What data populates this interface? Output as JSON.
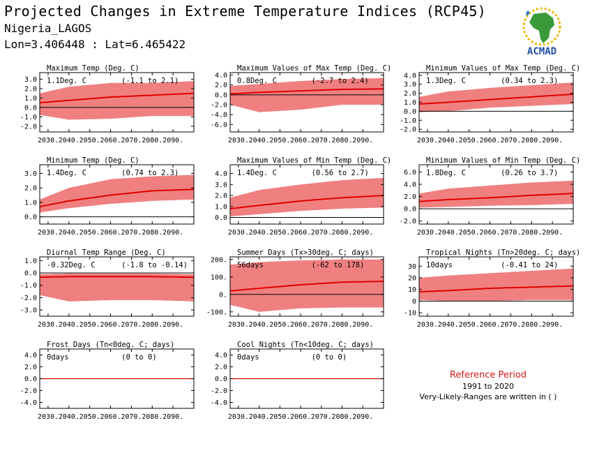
{
  "header": {
    "title": "Projected Changes in Extreme Temperature Indices (RCP45)",
    "location": "Nigeria_LAGOS",
    "coords": "Lon=3.406448 : Lat=6.465422"
  },
  "logo": {
    "text": "ACMAD",
    "icon": "africa-map-logo"
  },
  "reference": {
    "title": "Reference Period",
    "years": "1991 to 2020",
    "note": "Very-Likely-Ranges are written in ( )"
  },
  "colors": {
    "band": "#f08080",
    "line": "#e00000",
    "zero": "#000000"
  },
  "chart_data": [
    {
      "type": "area",
      "title": "Maximum Temp (Deg. C)",
      "mean_label": "1.1Deg. C",
      "range_label": "(-1.1 to 2.1)",
      "x": [
        "2030.",
        "2040.",
        "2050.",
        "2060.",
        "2070.",
        "2080.",
        "2090."
      ],
      "x_range": [
        2026,
        2100
      ],
      "yticks": [
        "3.0",
        "2.0",
        "1.0",
        "0.0",
        "-1.0",
        "-2.0"
      ],
      "ylim": [
        -2.6,
        3.7
      ],
      "series": [
        {
          "mean": [
            [
              2026,
              0.5
            ],
            [
              2040,
              0.75
            ],
            [
              2060,
              1.1
            ],
            [
              2080,
              1.3
            ],
            [
              2100,
              1.5
            ]
          ],
          "low": [
            [
              2026,
              -0.8
            ],
            [
              2040,
              -1.3
            ],
            [
              2060,
              -1.2
            ],
            [
              2080,
              -0.9
            ],
            [
              2100,
              -0.9
            ]
          ],
          "high": [
            [
              2026,
              1.5
            ],
            [
              2040,
              2.2
            ],
            [
              2060,
              2.6
            ],
            [
              2080,
              2.6
            ],
            [
              2100,
              2.8
            ]
          ]
        }
      ]
    },
    {
      "type": "area",
      "title": "Maximum Values of Max Temp (Deg. C)",
      "mean_label": "0.8Deg. C",
      "range_label": "(-2.7 to 2.4)",
      "x": [
        "2030.",
        "2040.",
        "2050.",
        "2060.",
        "2070.",
        "2080.",
        "2090."
      ],
      "x_range": [
        2026,
        2100
      ],
      "yticks": [
        "4.0",
        "2.0",
        "0.0",
        "-2.0",
        "-4.0",
        "-6.0"
      ],
      "ylim": [
        -7.5,
        4.5
      ],
      "series": [
        {
          "mean": [
            [
              2026,
              0.2
            ],
            [
              2040,
              0.5
            ],
            [
              2060,
              0.8
            ],
            [
              2080,
              1.1
            ],
            [
              2100,
              1.2
            ]
          ],
          "low": [
            [
              2026,
              -2.0
            ],
            [
              2040,
              -3.5
            ],
            [
              2060,
              -3.0
            ],
            [
              2080,
              -2.0
            ],
            [
              2100,
              -2.0
            ]
          ],
          "high": [
            [
              2026,
              1.8
            ],
            [
              2040,
              2.2
            ],
            [
              2060,
              2.8
            ],
            [
              2080,
              3.2
            ],
            [
              2100,
              3.4
            ]
          ]
        }
      ]
    },
    {
      "type": "area",
      "title": "Minimum Values of Max Temp (Deg. C)",
      "mean_label": "1.3Deg. C",
      "range_label": "(0.34 to 2.3)",
      "x": [
        "2030.",
        "2040.",
        "2050.",
        "2060.",
        "2070.",
        "2080.",
        "2090."
      ],
      "x_range": [
        2026,
        2100
      ],
      "yticks": [
        "4.0",
        "3.0",
        "2.0",
        "1.0",
        "0.0",
        "-1.0",
        "-2.0"
      ],
      "ylim": [
        -2.3,
        4.3
      ],
      "series": [
        {
          "mean": [
            [
              2026,
              0.8
            ],
            [
              2040,
              1.0
            ],
            [
              2060,
              1.3
            ],
            [
              2080,
              1.6
            ],
            [
              2100,
              1.9
            ]
          ],
          "low": [
            [
              2026,
              -0.1
            ],
            [
              2040,
              0.0
            ],
            [
              2060,
              0.4
            ],
            [
              2080,
              0.6
            ],
            [
              2100,
              0.8
            ]
          ],
          "high": [
            [
              2026,
              1.6
            ],
            [
              2040,
              2.2
            ],
            [
              2060,
              2.6
            ],
            [
              2080,
              2.9
            ],
            [
              2100,
              3.2
            ]
          ]
        }
      ]
    },
    {
      "type": "area",
      "title": "Minimum Temp (Deg. C)",
      "mean_label": "1.4Deg. C",
      "range_label": "(0.74 to 2.3)",
      "x": [
        "2030.",
        "2040.",
        "2050.",
        "2060.",
        "2070.",
        "2080.",
        "2090."
      ],
      "x_range": [
        2026,
        2100
      ],
      "yticks": [
        "3.0",
        "2.0",
        "1.0",
        "0.0"
      ],
      "ylim": [
        -0.5,
        3.6
      ],
      "series": [
        {
          "mean": [
            [
              2026,
              0.7
            ],
            [
              2040,
              1.1
            ],
            [
              2060,
              1.5
            ],
            [
              2080,
              1.8
            ],
            [
              2100,
              1.9
            ]
          ],
          "low": [
            [
              2026,
              0.3
            ],
            [
              2040,
              0.6
            ],
            [
              2060,
              0.9
            ],
            [
              2080,
              1.1
            ],
            [
              2100,
              1.2
            ]
          ],
          "high": [
            [
              2026,
              1.2
            ],
            [
              2040,
              2.0
            ],
            [
              2060,
              2.6
            ],
            [
              2080,
              2.8
            ],
            [
              2100,
              2.9
            ]
          ]
        }
      ]
    },
    {
      "type": "area",
      "title": "Maximum Values of Min Temp (Deg. C)",
      "mean_label": "1.4Deg. C",
      "range_label": "(0.56 to 2.7)",
      "x": [
        "2030.",
        "2040.",
        "2050.",
        "2060.",
        "2070.",
        "2080.",
        "2090."
      ],
      "x_range": [
        2026,
        2100
      ],
      "yticks": [
        "4.0",
        "3.0",
        "2.0",
        "1.0",
        "0.0"
      ],
      "ylim": [
        -0.6,
        4.8
      ],
      "series": [
        {
          "mean": [
            [
              2026,
              0.8
            ],
            [
              2040,
              1.1
            ],
            [
              2060,
              1.5
            ],
            [
              2080,
              1.8
            ],
            [
              2100,
              2.0
            ]
          ],
          "low": [
            [
              2026,
              0.1
            ],
            [
              2040,
              0.3
            ],
            [
              2060,
              0.6
            ],
            [
              2080,
              0.8
            ],
            [
              2100,
              0.9
            ]
          ],
          "high": [
            [
              2026,
              1.8
            ],
            [
              2040,
              2.5
            ],
            [
              2060,
              3.0
            ],
            [
              2080,
              3.4
            ],
            [
              2100,
              3.6
            ]
          ]
        }
      ]
    },
    {
      "type": "area",
      "title": "Minimum Values of Min Temp (Deg. C)",
      "mean_label": "1.8Deg. C",
      "range_label": "(0.26 to 3.7)",
      "x": [
        "2030.",
        "2040.",
        "2050.",
        "2060.",
        "2070.",
        "2080.",
        "2090."
      ],
      "x_range": [
        2026,
        2100
      ],
      "yticks": [
        "6.0",
        "4.0",
        "2.0",
        "0.0",
        "-2.0"
      ],
      "ylim": [
        -2.5,
        7.2
      ],
      "series": [
        {
          "mean": [
            [
              2026,
              1.2
            ],
            [
              2040,
              1.5
            ],
            [
              2060,
              1.8
            ],
            [
              2080,
              2.2
            ],
            [
              2100,
              2.5
            ]
          ],
          "low": [
            [
              2026,
              0.2
            ],
            [
              2040,
              0.3
            ],
            [
              2060,
              0.5
            ],
            [
              2080,
              0.6
            ],
            [
              2100,
              0.8
            ]
          ],
          "high": [
            [
              2026,
              2.5
            ],
            [
              2040,
              3.3
            ],
            [
              2060,
              3.8
            ],
            [
              2080,
              4.3
            ],
            [
              2100,
              4.6
            ]
          ]
        }
      ]
    },
    {
      "type": "area",
      "title": "Diurnal Temp Range (Deg. C)",
      "mean_label": "-0.32Deg. C",
      "range_label": "(-1.8 to -0.14)",
      "x": [
        "2030.",
        "2040.",
        "2050.",
        "2060.",
        "2070.",
        "2080.",
        "2090."
      ],
      "x_range": [
        2026,
        2100
      ],
      "yticks": [
        "1.0",
        "0.0",
        "-1.0",
        "-2.0",
        "-3.0"
      ],
      "ylim": [
        -3.5,
        1.3
      ],
      "series": [
        {
          "mean": [
            [
              2026,
              -0.35
            ],
            [
              2040,
              -0.3
            ],
            [
              2060,
              -0.3
            ],
            [
              2080,
              -0.3
            ],
            [
              2100,
              -0.35
            ]
          ],
          "low": [
            [
              2026,
              -1.8
            ],
            [
              2040,
              -2.3
            ],
            [
              2060,
              -2.2
            ],
            [
              2080,
              -2.2
            ],
            [
              2100,
              -2.3
            ]
          ],
          "high": [
            [
              2026,
              -0.1
            ],
            [
              2040,
              -0.05
            ],
            [
              2060,
              -0.05
            ],
            [
              2080,
              -0.05
            ],
            [
              2100,
              -0.1
            ]
          ]
        }
      ]
    },
    {
      "type": "area",
      "title": "Summer Days (Tx>30deg. C; days)",
      "mean_label": "56days",
      "range_label": "(-62 to 178)",
      "x": [
        "2030.",
        "2040.",
        "2050.",
        "2060.",
        "2070.",
        "2080.",
        "2090."
      ],
      "x_range": [
        2026,
        2100
      ],
      "yticks": [
        "200.",
        "100.",
        "0.",
        "-100."
      ],
      "ylim": [
        -125,
        215
      ],
      "series": [
        {
          "mean": [
            [
              2026,
              20
            ],
            [
              2040,
              35
            ],
            [
              2060,
              55
            ],
            [
              2080,
              70
            ],
            [
              2100,
              75
            ]
          ],
          "low": [
            [
              2026,
              -60
            ],
            [
              2040,
              -100
            ],
            [
              2060,
              -80
            ],
            [
              2080,
              -75
            ],
            [
              2100,
              -75
            ]
          ],
          "high": [
            [
              2026,
              170
            ],
            [
              2040,
              185
            ],
            [
              2060,
              195
            ],
            [
              2080,
              200
            ],
            [
              2100,
              200
            ]
          ]
        }
      ]
    },
    {
      "type": "area",
      "title": "Tropical Nights (Tn>20deg. C; days)",
      "mean_label": "10days",
      "range_label": "(-0.41 to 24)",
      "x": [
        "2030.",
        "2040.",
        "2050.",
        "2060.",
        "2070.",
        "2080.",
        "2090."
      ],
      "x_range": [
        2026,
        2100
      ],
      "yticks": [
        "30",
        "20",
        "10",
        "0",
        "-10"
      ],
      "ylim": [
        -13,
        38
      ],
      "series": [
        {
          "mean": [
            [
              2026,
              8
            ],
            [
              2040,
              9
            ],
            [
              2060,
              11
            ],
            [
              2080,
              12
            ],
            [
              2100,
              13
            ]
          ],
          "low": [
            [
              2026,
              1
            ],
            [
              2040,
              0
            ],
            [
              2060,
              0
            ],
            [
              2080,
              1
            ],
            [
              2100,
              1
            ]
          ],
          "high": [
            [
              2026,
              20
            ],
            [
              2040,
              22
            ],
            [
              2060,
              24
            ],
            [
              2080,
              26
            ],
            [
              2100,
              28
            ]
          ]
        }
      ]
    },
    {
      "type": "line",
      "title": "Frost Days (Tn<0deg. C; days)",
      "mean_label": "0days",
      "range_label": "(0 to 0)",
      "x": [
        "2030.",
        "2040.",
        "2050.",
        "2060.",
        "2070.",
        "2080.",
        "2090."
      ],
      "x_range": [
        2026,
        2100
      ],
      "yticks": [
        "4.0",
        "2.0",
        "0.0",
        "-2.0",
        "-4.0"
      ],
      "ylim": [
        -5,
        5
      ],
      "series": [
        {
          "mean": [
            [
              2026,
              0
            ],
            [
              2100,
              0
            ]
          ],
          "low": [
            [
              2026,
              0
            ],
            [
              2100,
              0
            ]
          ],
          "high": [
            [
              2026,
              0
            ],
            [
              2100,
              0
            ]
          ]
        }
      ]
    },
    {
      "type": "line",
      "title": "Cool Nights (Tn<10deg. C; days)",
      "mean_label": "0days",
      "range_label": "(0 to 0)",
      "x": [
        "2030.",
        "2040.",
        "2050.",
        "2060.",
        "2070.",
        "2080.",
        "2090."
      ],
      "x_range": [
        2026,
        2100
      ],
      "yticks": [
        "4.0",
        "2.0",
        "0.0",
        "-2.0",
        "-4.0"
      ],
      "ylim": [
        -5,
        5
      ],
      "series": [
        {
          "mean": [
            [
              2026,
              0
            ],
            [
              2100,
              0
            ]
          ],
          "low": [
            [
              2026,
              0
            ],
            [
              2100,
              0
            ]
          ],
          "high": [
            [
              2026,
              0
            ],
            [
              2100,
              0
            ]
          ]
        }
      ]
    }
  ]
}
